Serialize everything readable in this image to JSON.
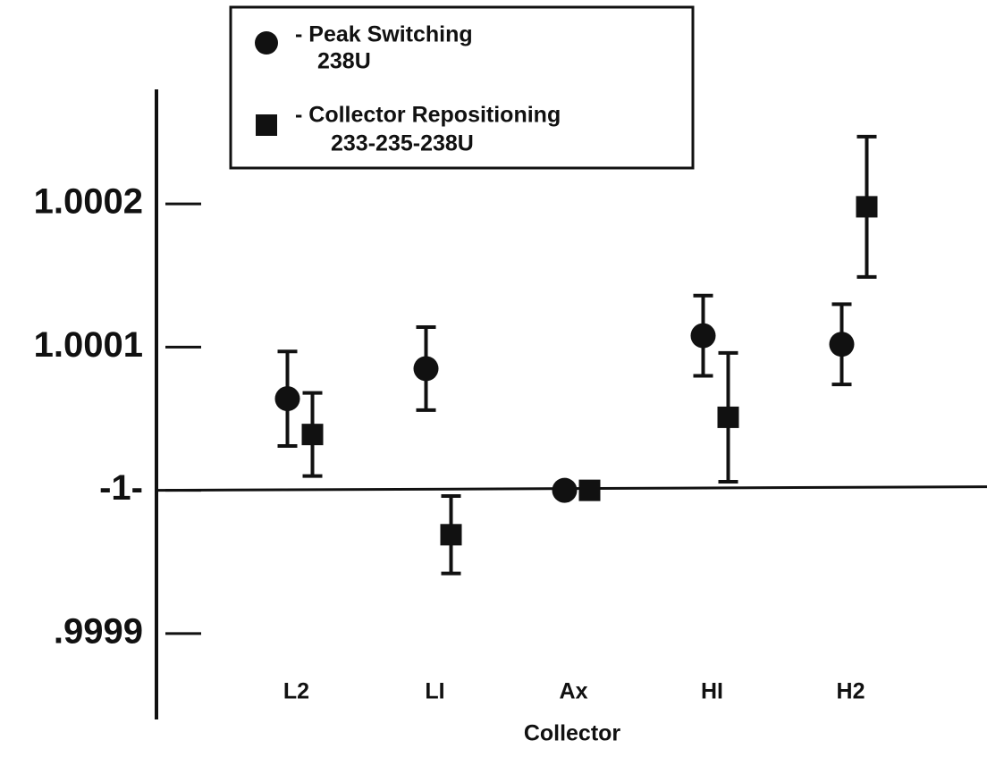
{
  "chart_data": {
    "type": "errorbar",
    "x_label": "Collector",
    "categories": [
      "L2",
      "LI",
      "Ax",
      "HI",
      "H2"
    ],
    "series": [
      {
        "name": "- Peak Switching",
        "isotope": "238U",
        "marker": "circle",
        "color": "#111111",
        "values": [
          1.000064,
          1.000085,
          1.0,
          1.000108,
          1.000102
        ],
        "errors": [
          3.3e-05,
          2.9e-05,
          0,
          2.8e-05,
          2.8e-05
        ]
      },
      {
        "name": "- Collector Repositioning",
        "isotope": "233-235-238U",
        "marker": "square",
        "color": "#111111",
        "values": [
          1.000039,
          0.999969,
          1.0,
          1.000051,
          1.000198
        ],
        "errors": [
          2.9e-05,
          2.7e-05,
          0,
          4.5e-05,
          4.9e-05
        ]
      }
    ],
    "hline": 1,
    "ylim": [
      0.99984,
      1.00028
    ],
    "yticks": [
      {
        "value": 0.9999,
        "label": ".9999"
      },
      {
        "value": 1,
        "label": "-1-"
      },
      1.0001,
      1.0002
    ],
    "legend": "top-left"
  }
}
